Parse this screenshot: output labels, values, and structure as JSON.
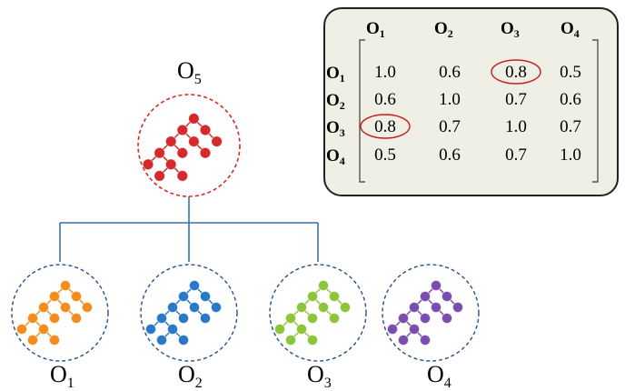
{
  "parent": {
    "label": "O",
    "subscript": "5",
    "color": "#d42a2a",
    "circle_color": "#d42a2a"
  },
  "children": [
    {
      "label": "O",
      "subscript": "1",
      "color": "#f28c1a"
    },
    {
      "label": "O",
      "subscript": "2",
      "color": "#2a78c8"
    },
    {
      "label": "O",
      "subscript": "3",
      "color": "#8cc43a"
    },
    {
      "label": "O",
      "subscript": "4",
      "color": "#7a4db0"
    }
  ],
  "child_circle_color": "#2a4f8a",
  "connector_color": "#3a6fb0",
  "matrix": {
    "col_headers": [
      {
        "label": "O",
        "subscript": "1"
      },
      {
        "label": "O",
        "subscript": "2"
      },
      {
        "label": "O",
        "subscript": "3"
      },
      {
        "label": "O",
        "subscript": "4"
      }
    ],
    "rows": [
      {
        "label": "O",
        "subscript": "1",
        "values": [
          "1.0",
          "0.6",
          "0.8",
          "0.5"
        ]
      },
      {
        "label": "O",
        "subscript": "2",
        "values": [
          "0.6",
          "1.0",
          "0.7",
          "0.6"
        ]
      },
      {
        "label": "O",
        "subscript": "3",
        "values": [
          "0.8",
          "0.7",
          "1.0",
          "0.7"
        ]
      },
      {
        "label": "O",
        "subscript": "4",
        "values": [
          "0.5",
          "0.6",
          "0.7",
          "1.0"
        ]
      }
    ],
    "highlight_color": "#c81e1e",
    "highlighted_cells": [
      {
        "row": 0,
        "col": 2
      },
      {
        "row": 2,
        "col": 0
      }
    ]
  }
}
